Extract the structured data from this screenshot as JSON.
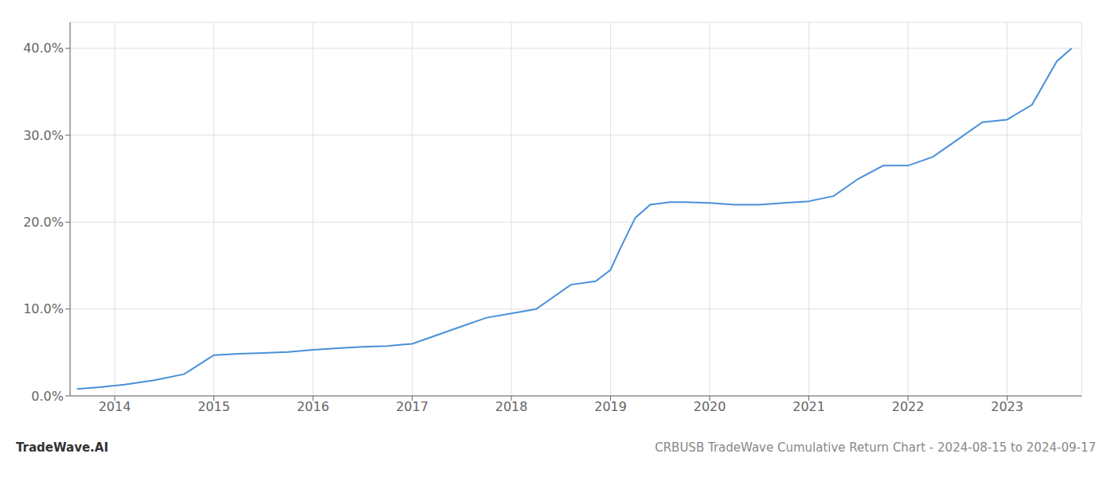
{
  "chart_data": {
    "type": "line",
    "title": "CRBUSB TradeWave Cumulative Return Chart - 2024-08-15 to 2024-09-17",
    "annotations": [
      "TradeWave.AI"
    ],
    "x": [
      2013.62,
      2013.85,
      2014.1,
      2014.4,
      2014.7,
      2015.0,
      2015.25,
      2015.5,
      2015.75,
      2016.0,
      2016.25,
      2016.5,
      2016.75,
      2017.0,
      2017.25,
      2017.5,
      2017.75,
      2018.0,
      2018.25,
      2018.6,
      2018.85,
      2019.0,
      2019.1,
      2019.25,
      2019.4,
      2019.6,
      2019.75,
      2020.0,
      2020.25,
      2020.5,
      2020.75,
      2021.0,
      2021.25,
      2021.5,
      2021.75,
      2022.0,
      2022.25,
      2022.5,
      2022.75,
      2023.0,
      2023.25,
      2023.5,
      2023.65
    ],
    "values": [
      0.8,
      1.0,
      1.3,
      1.8,
      2.5,
      4.7,
      4.85,
      4.95,
      5.05,
      5.3,
      5.5,
      5.65,
      5.75,
      6.0,
      7.0,
      8.0,
      9.0,
      9.5,
      10.0,
      12.8,
      13.2,
      14.5,
      17.0,
      20.5,
      22.0,
      22.3,
      22.3,
      22.2,
      22.0,
      22.0,
      22.2,
      22.4,
      23.0,
      25.0,
      26.5,
      26.5,
      27.5,
      29.5,
      31.5,
      31.8,
      33.5,
      38.5,
      40.0
    ],
    "color": "#4a90d9",
    "xlim": [
      2013.55,
      2023.75
    ],
    "xticks": [
      2014,
      2015,
      2016,
      2017,
      2018,
      2019,
      2020,
      2021,
      2022,
      2023
    ],
    "ylim": [
      0,
      43
    ],
    "yticks": [
      {
        "value": 0.0,
        "label": "0.0%"
      },
      {
        "value": 10.0,
        "label": "10.0%"
      },
      {
        "value": 20.0,
        "label": "20.0%"
      },
      {
        "value": 30.0,
        "label": "30.0%"
      },
      {
        "value": 40.0,
        "label": "40.0%"
      }
    ],
    "grid": true
  }
}
